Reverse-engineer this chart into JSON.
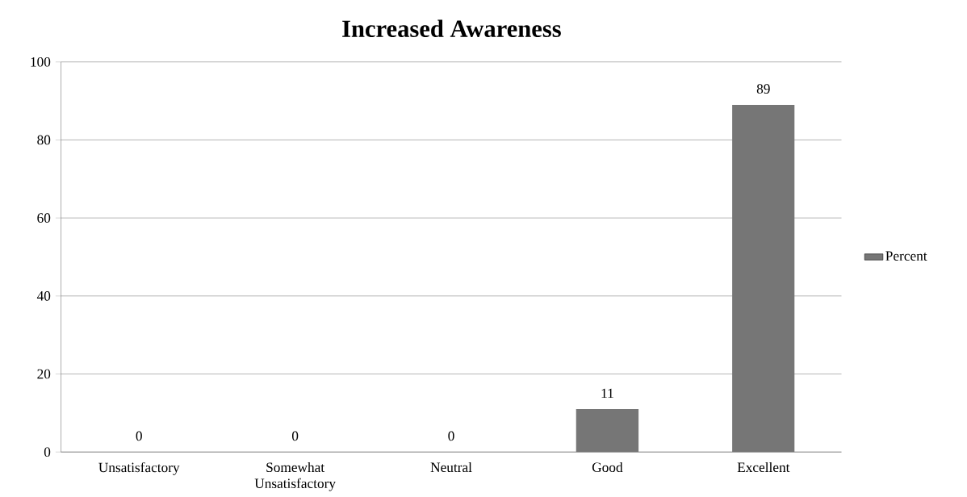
{
  "chart_data": {
    "type": "bar",
    "title": "Increased Awareness",
    "categories": [
      "Unsatisfactory",
      "Somewhat Unsatisfactory",
      "Neutral",
      "Good",
      "Excellent"
    ],
    "series": [
      {
        "name": "Percent",
        "color": "#767676",
        "values": [
          0,
          0,
          0,
          11,
          89
        ]
      }
    ],
    "ylim": [
      0,
      100
    ],
    "yticks": [
      0,
      20,
      40,
      60,
      80,
      100
    ],
    "grid": "y",
    "legend": "right",
    "data_labels": true
  }
}
